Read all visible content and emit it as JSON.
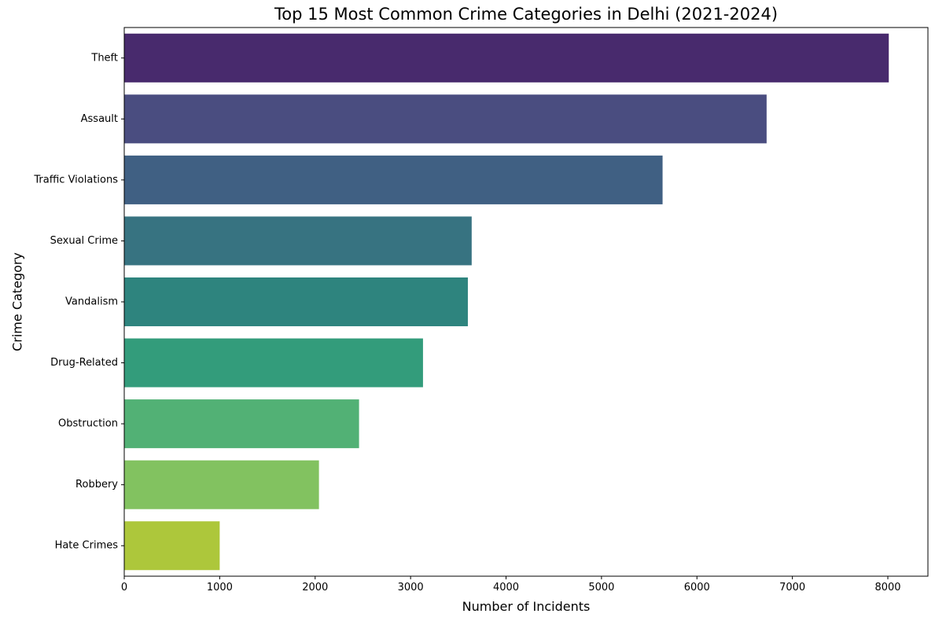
{
  "chart_data": {
    "type": "bar",
    "orientation": "horizontal",
    "title": "Top 15 Most Common Crime Categories in Delhi (2021-2024)",
    "xlabel": "Number of Incidents",
    "ylabel": "Crime Category",
    "categories": [
      "Theft",
      "Assault",
      "Traffic Violations",
      "Sexual Crime",
      "Vandalism",
      "Drug-Related",
      "Obstruction",
      "Robbery",
      "Hate Crimes"
    ],
    "values": [
      8010,
      6730,
      5640,
      3640,
      3600,
      3130,
      2460,
      2040,
      1000
    ],
    "colors": [
      "#482a6d",
      "#4a4d80",
      "#406083",
      "#377381",
      "#2e847e",
      "#339c7b",
      "#52b175",
      "#82c260",
      "#adc73b"
    ],
    "xlim": [
      0,
      8420
    ],
    "xticks": [
      0,
      1000,
      2000,
      3000,
      4000,
      5000,
      6000,
      7000,
      8000
    ],
    "grid": false,
    "legend": "none"
  }
}
